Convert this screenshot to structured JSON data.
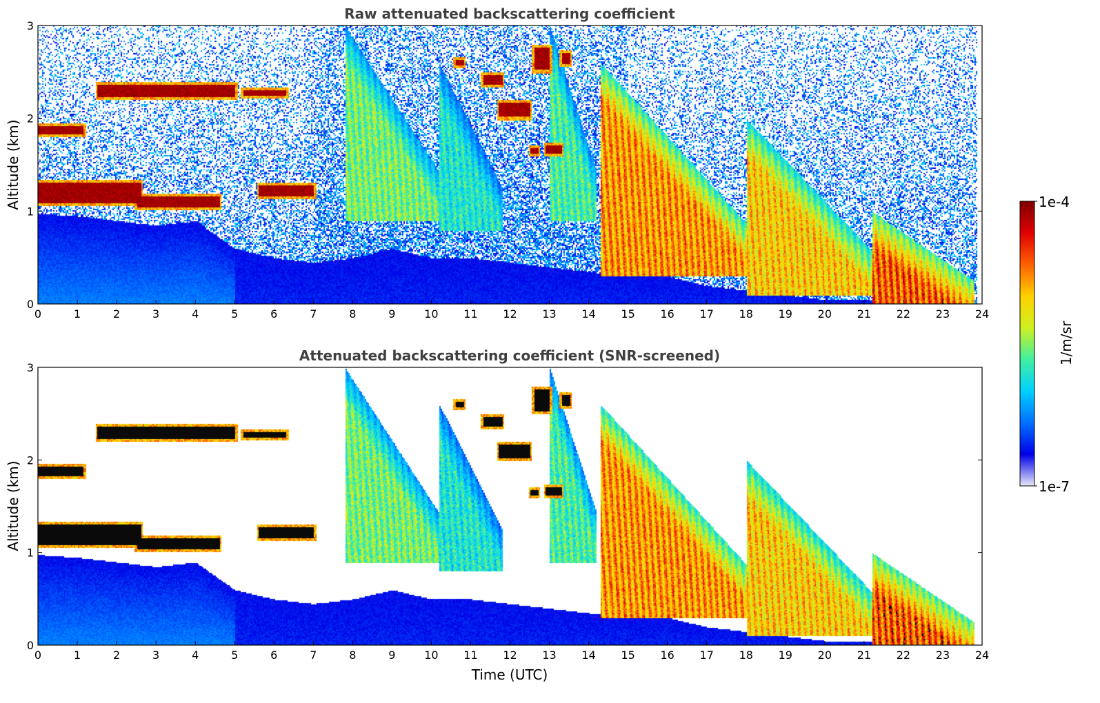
{
  "chart_data": [
    {
      "type": "heatmap",
      "title": "Raw attenuated backscattering coefficient",
      "xlabel": "",
      "ylabel": "Altitude (km)",
      "xlim": [
        0,
        24
      ],
      "ylim": [
        0,
        3
      ],
      "xticks": [
        "0",
        "1",
        "2",
        "3",
        "4",
        "5",
        "6",
        "7",
        "8",
        "9",
        "10",
        "11",
        "12",
        "13",
        "14",
        "15",
        "16",
        "17",
        "18",
        "19",
        "20",
        "21",
        "22",
        "23",
        "24"
      ],
      "yticks": [
        "0",
        "1",
        "2",
        "3"
      ],
      "grid": false,
      "screened": false
    },
    {
      "type": "heatmap",
      "title": "Attenuated backscattering coefficient (SNR-screened)",
      "xlabel": "Time (UTC)",
      "ylabel": "Altitude (km)",
      "xlim": [
        0,
        24
      ],
      "ylim": [
        0,
        3
      ],
      "xticks": [
        "0",
        "1",
        "2",
        "3",
        "4",
        "5",
        "6",
        "7",
        "8",
        "9",
        "10",
        "11",
        "12",
        "13",
        "14",
        "15",
        "16",
        "17",
        "18",
        "19",
        "20",
        "21",
        "22",
        "23",
        "24"
      ],
      "yticks": [
        "0",
        "1",
        "2",
        "3"
      ],
      "grid": false,
      "screened": true
    }
  ],
  "colorbar": {
    "label": "1/m/sr",
    "max_label": "1e-4",
    "min_label": "1e-7",
    "scale": "log",
    "colormap": [
      "#e8e8f8",
      "#0000e8",
      "#0070ff",
      "#00d0ff",
      "#40f0a0",
      "#d0f020",
      "#ffd000",
      "#ff6000",
      "#e00000",
      "#800000"
    ]
  },
  "features": {
    "boundary_layer": [
      [
        0,
        0.98
      ],
      [
        1,
        0.95
      ],
      [
        2,
        0.9
      ],
      [
        3,
        0.85
      ],
      [
        4,
        0.9
      ],
      [
        5,
        0.6
      ],
      [
        6,
        0.5
      ],
      [
        7,
        0.45
      ],
      [
        8,
        0.5
      ],
      [
        9,
        0.6
      ],
      [
        10,
        0.5
      ],
      [
        11,
        0.5
      ],
      [
        12,
        0.45
      ],
      [
        13,
        0.4
      ],
      [
        14,
        0.35
      ],
      [
        15,
        0.3
      ],
      [
        16,
        0.3
      ],
      [
        17,
        0.2
      ],
      [
        18,
        0.15
      ],
      [
        19,
        0.1
      ],
      [
        20,
        0.05
      ],
      [
        21,
        0.05
      ],
      [
        22,
        0.0
      ],
      [
        23,
        0.0
      ],
      [
        23.8,
        0.0
      ]
    ],
    "clouds": [
      {
        "t0": 1.5,
        "t1": 5.0,
        "alt": 2.3,
        "thick": 0.14
      },
      {
        "t0": 5.2,
        "t1": 6.3,
        "alt": 2.28,
        "thick": 0.06
      },
      {
        "t0": 0.0,
        "t1": 1.15,
        "alt": 1.88,
        "thick": 0.1
      },
      {
        "t0": 0.0,
        "t1": 2.6,
        "alt": 1.2,
        "thick": 0.22
      },
      {
        "t0": 2.5,
        "t1": 4.6,
        "alt": 1.1,
        "thick": 0.12
      },
      {
        "t0": 5.6,
        "t1": 7.0,
        "alt": 1.22,
        "thick": 0.12
      },
      {
        "t0": 10.6,
        "t1": 10.8,
        "alt": 2.6,
        "thick": 0.06
      },
      {
        "t0": 11.3,
        "t1": 11.8,
        "alt": 2.42,
        "thick": 0.1
      },
      {
        "t0": 11.7,
        "t1": 12.5,
        "alt": 2.1,
        "thick": 0.16
      },
      {
        "t0": 12.6,
        "t1": 13.0,
        "alt": 2.65,
        "thick": 0.25
      },
      {
        "t0": 13.3,
        "t1": 13.5,
        "alt": 2.65,
        "thick": 0.12
      },
      {
        "t0": 12.9,
        "t1": 13.3,
        "alt": 1.67,
        "thick": 0.08
      },
      {
        "t0": 12.5,
        "t1": 12.7,
        "alt": 1.65,
        "thick": 0.06
      }
    ],
    "virga": [
      {
        "t0": 7.8,
        "t1": 10.2,
        "alt": 0.9,
        "top": 3.0,
        "level": 0.55
      },
      {
        "t0": 10.2,
        "t1": 11.8,
        "alt": 0.8,
        "top": 2.6,
        "level": 0.45
      },
      {
        "t0": 13.0,
        "t1": 14.2,
        "alt": 0.9,
        "top": 3.0,
        "level": 0.5
      },
      {
        "t0": 14.3,
        "t1": 18.0,
        "alt": 0.3,
        "top": 2.6,
        "level": 0.82
      },
      {
        "t0": 18.0,
        "t1": 21.2,
        "alt": 0.1,
        "top": 2.0,
        "level": 0.75
      },
      {
        "t0": 21.2,
        "t1": 23.8,
        "alt": 0.0,
        "top": 1.0,
        "level": 0.9
      }
    ]
  }
}
